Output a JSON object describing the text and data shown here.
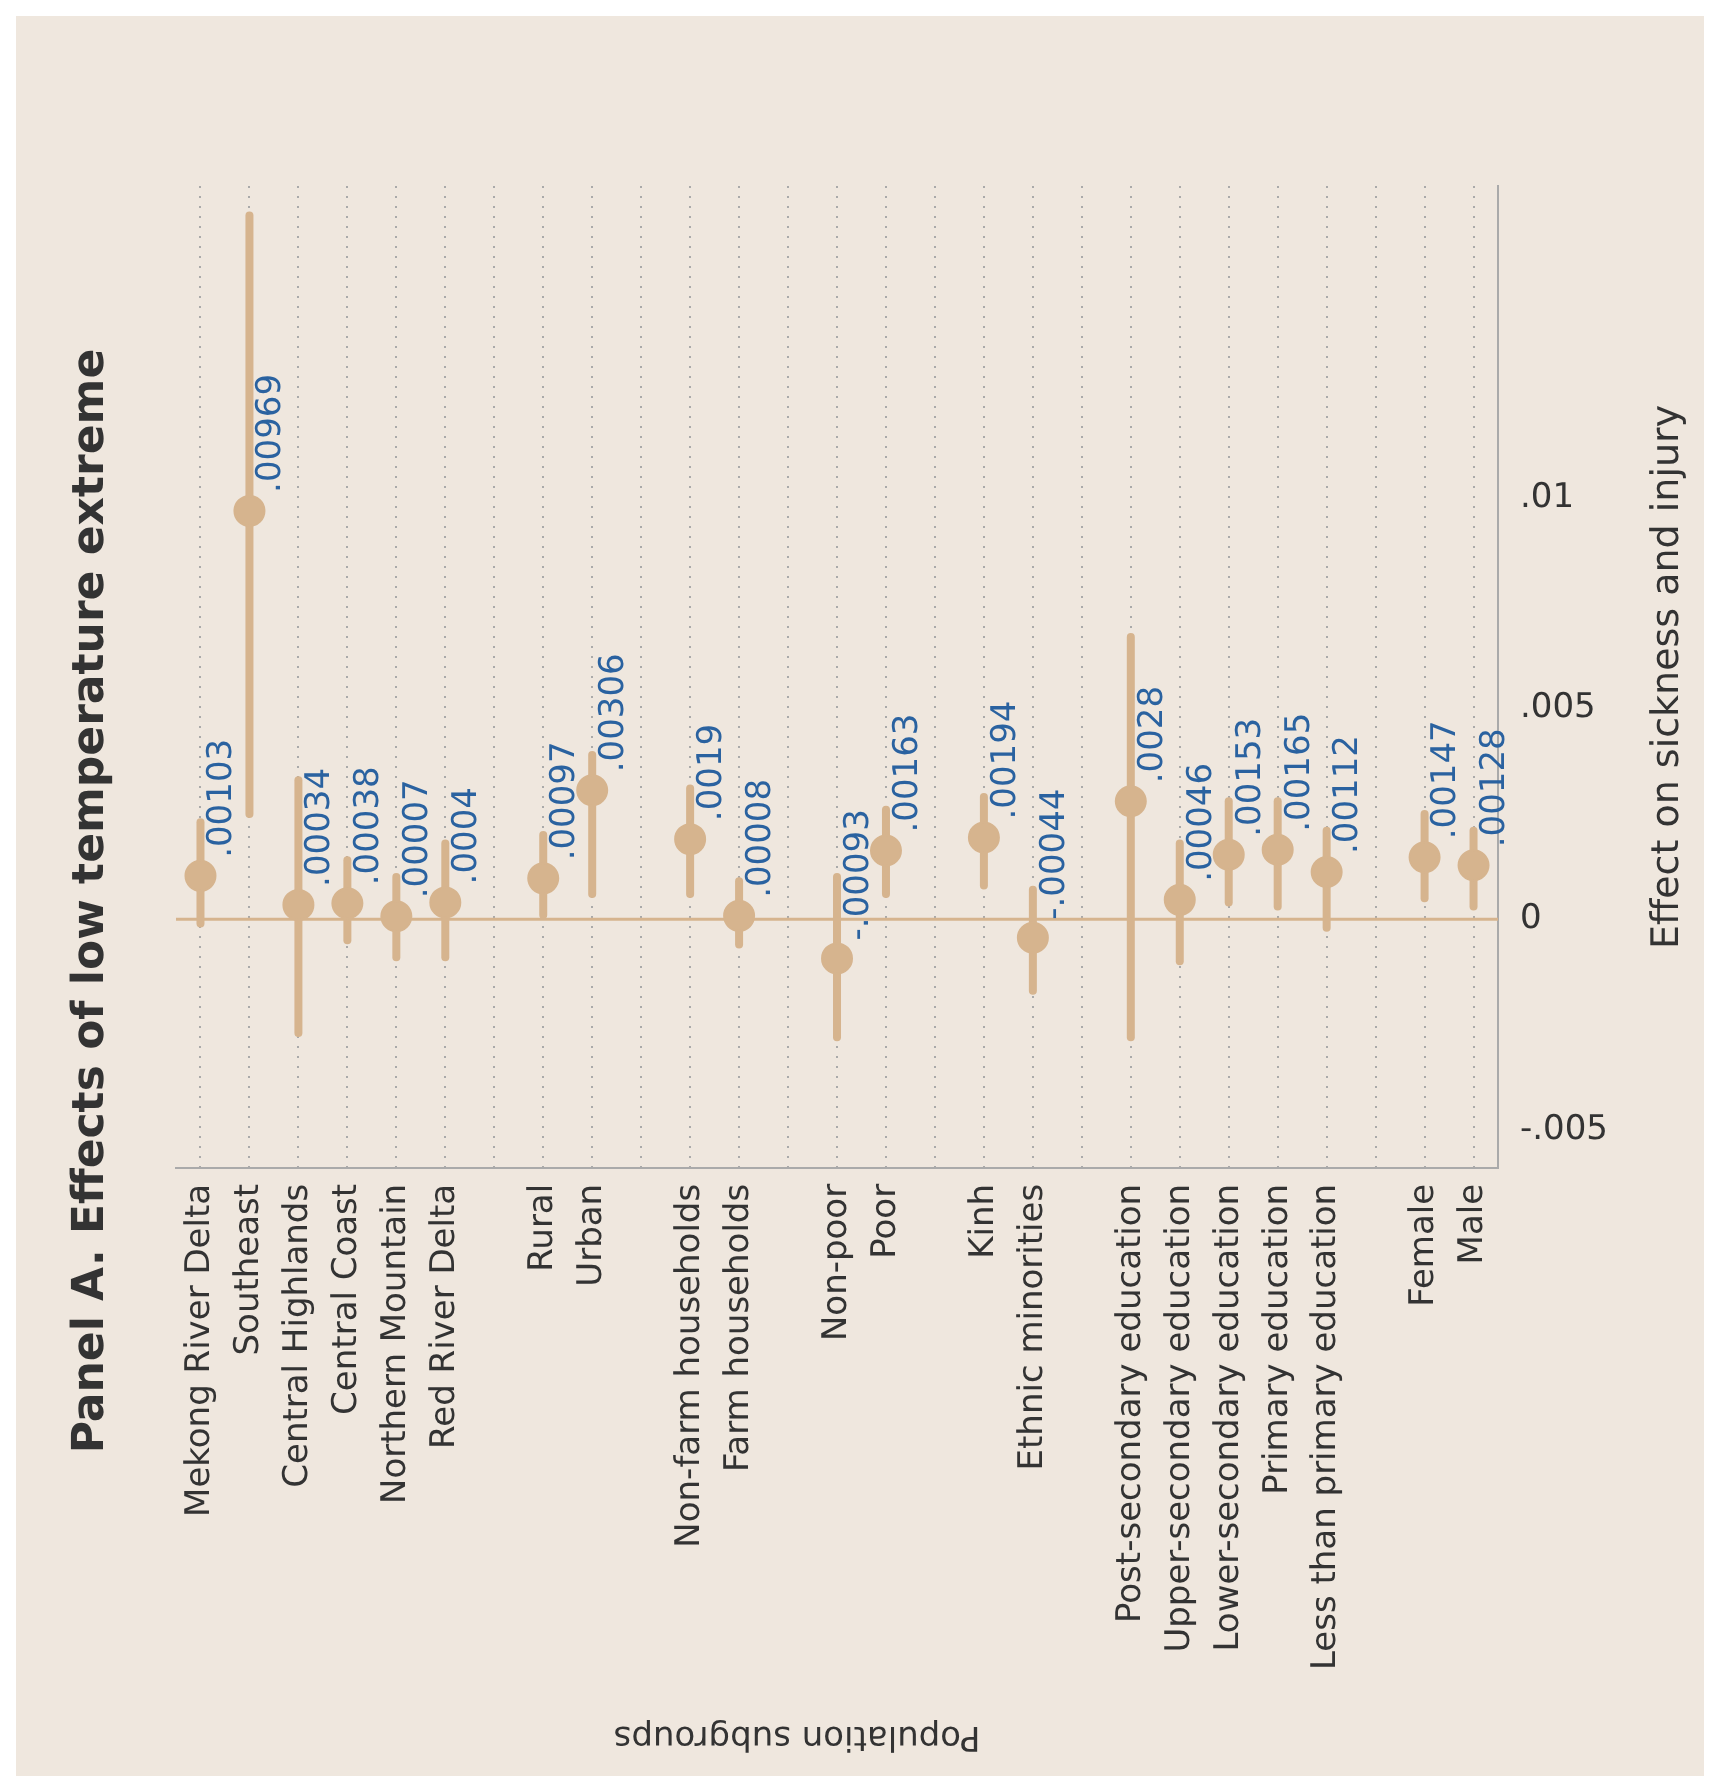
{
  "chart_data": {
    "type": "scatter",
    "title": "Panel A. Effects of low temperature extreme",
    "xlabel": "Population subgroups",
    "ylabel": "Effect on sickness and injury",
    "categories": [
      "Mekong River Delta",
      "Southeast",
      "Central Highlands",
      "Central Coast",
      "Northern Mountain",
      "Red River Delta",
      null,
      "Rural",
      "Urban",
      null,
      "Non-farm households",
      "Farm households",
      null,
      "Non-poor",
      "Poor",
      null,
      "Kinh",
      "Ethnic minorities",
      null,
      "Post-secondary education",
      "Upper-secondary education",
      "Lower-secondary education",
      "Primary education",
      "Less than primary education",
      null,
      "Female",
      "Male"
    ],
    "series": [
      {
        "color": "#d6b48e",
        "values": [
          0.00103,
          0.00969,
          0.00034,
          0.00038,
          7e-05,
          0.0004,
          null,
          0.00097,
          0.00306,
          null,
          0.0019,
          8e-05,
          null,
          -0.00093,
          0.00163,
          null,
          0.00194,
          -0.00044,
          null,
          0.0028,
          0.00046,
          0.00153,
          0.00165,
          0.00112,
          null,
          0.00147,
          0.00128
        ],
        "value_labels": [
          ".00103",
          ".00969",
          ".00034",
          ".00038",
          ".00007",
          ".0004",
          null,
          ".00097",
          ".00306",
          null,
          ".0019",
          ".00008",
          null,
          "-.00093",
          ".00163",
          null,
          ".00194",
          "-.00044",
          null,
          ".0028",
          ".00046",
          ".00153",
          ".00165",
          ".00112",
          null,
          ".00147",
          ".00128"
        ],
        "errors": [
          [
            -0.0001,
            0.0023
          ],
          [
            0.0025,
            0.0167
          ],
          [
            -0.0027,
            0.0033
          ],
          [
            -0.0005,
            0.0014
          ],
          [
            -0.0009,
            0.001
          ],
          [
            -0.0009,
            0.0018
          ],
          null,
          [
            0.0001,
            0.002
          ],
          [
            0.0006,
            0.0039
          ],
          null,
          [
            0.0006,
            0.0031
          ],
          [
            -0.0006,
            0.0009
          ],
          null,
          [
            -0.0028,
            0.001
          ],
          [
            0.0006,
            0.0026
          ],
          null,
          [
            0.0008,
            0.0029
          ],
          [
            -0.0017,
            0.0007
          ],
          null,
          [
            -0.0028,
            0.0067
          ],
          [
            -0.001,
            0.0018
          ],
          [
            0.0004,
            0.0028
          ],
          [
            0.0003,
            0.0028
          ],
          [
            -0.0002,
            0.0021
          ],
          null,
          [
            0.0005,
            0.0025
          ],
          [
            0.0003,
            0.0021
          ]
        ]
      }
    ],
    "ylim": [
      -0.0059,
      0.0174
    ],
    "yticks": [
      {
        "value": -0.005,
        "label": "-.005"
      },
      {
        "value": 0,
        "label": "0"
      },
      {
        "value": 0.005,
        "label": ".005"
      },
      {
        "value": 0.01,
        "label": ".01"
      }
    ],
    "ref_lines": [
      {
        "axis": "y",
        "value": 0,
        "color": "#d6b48e"
      }
    ],
    "grid": "x",
    "marker": "circle",
    "legend": false
  }
}
